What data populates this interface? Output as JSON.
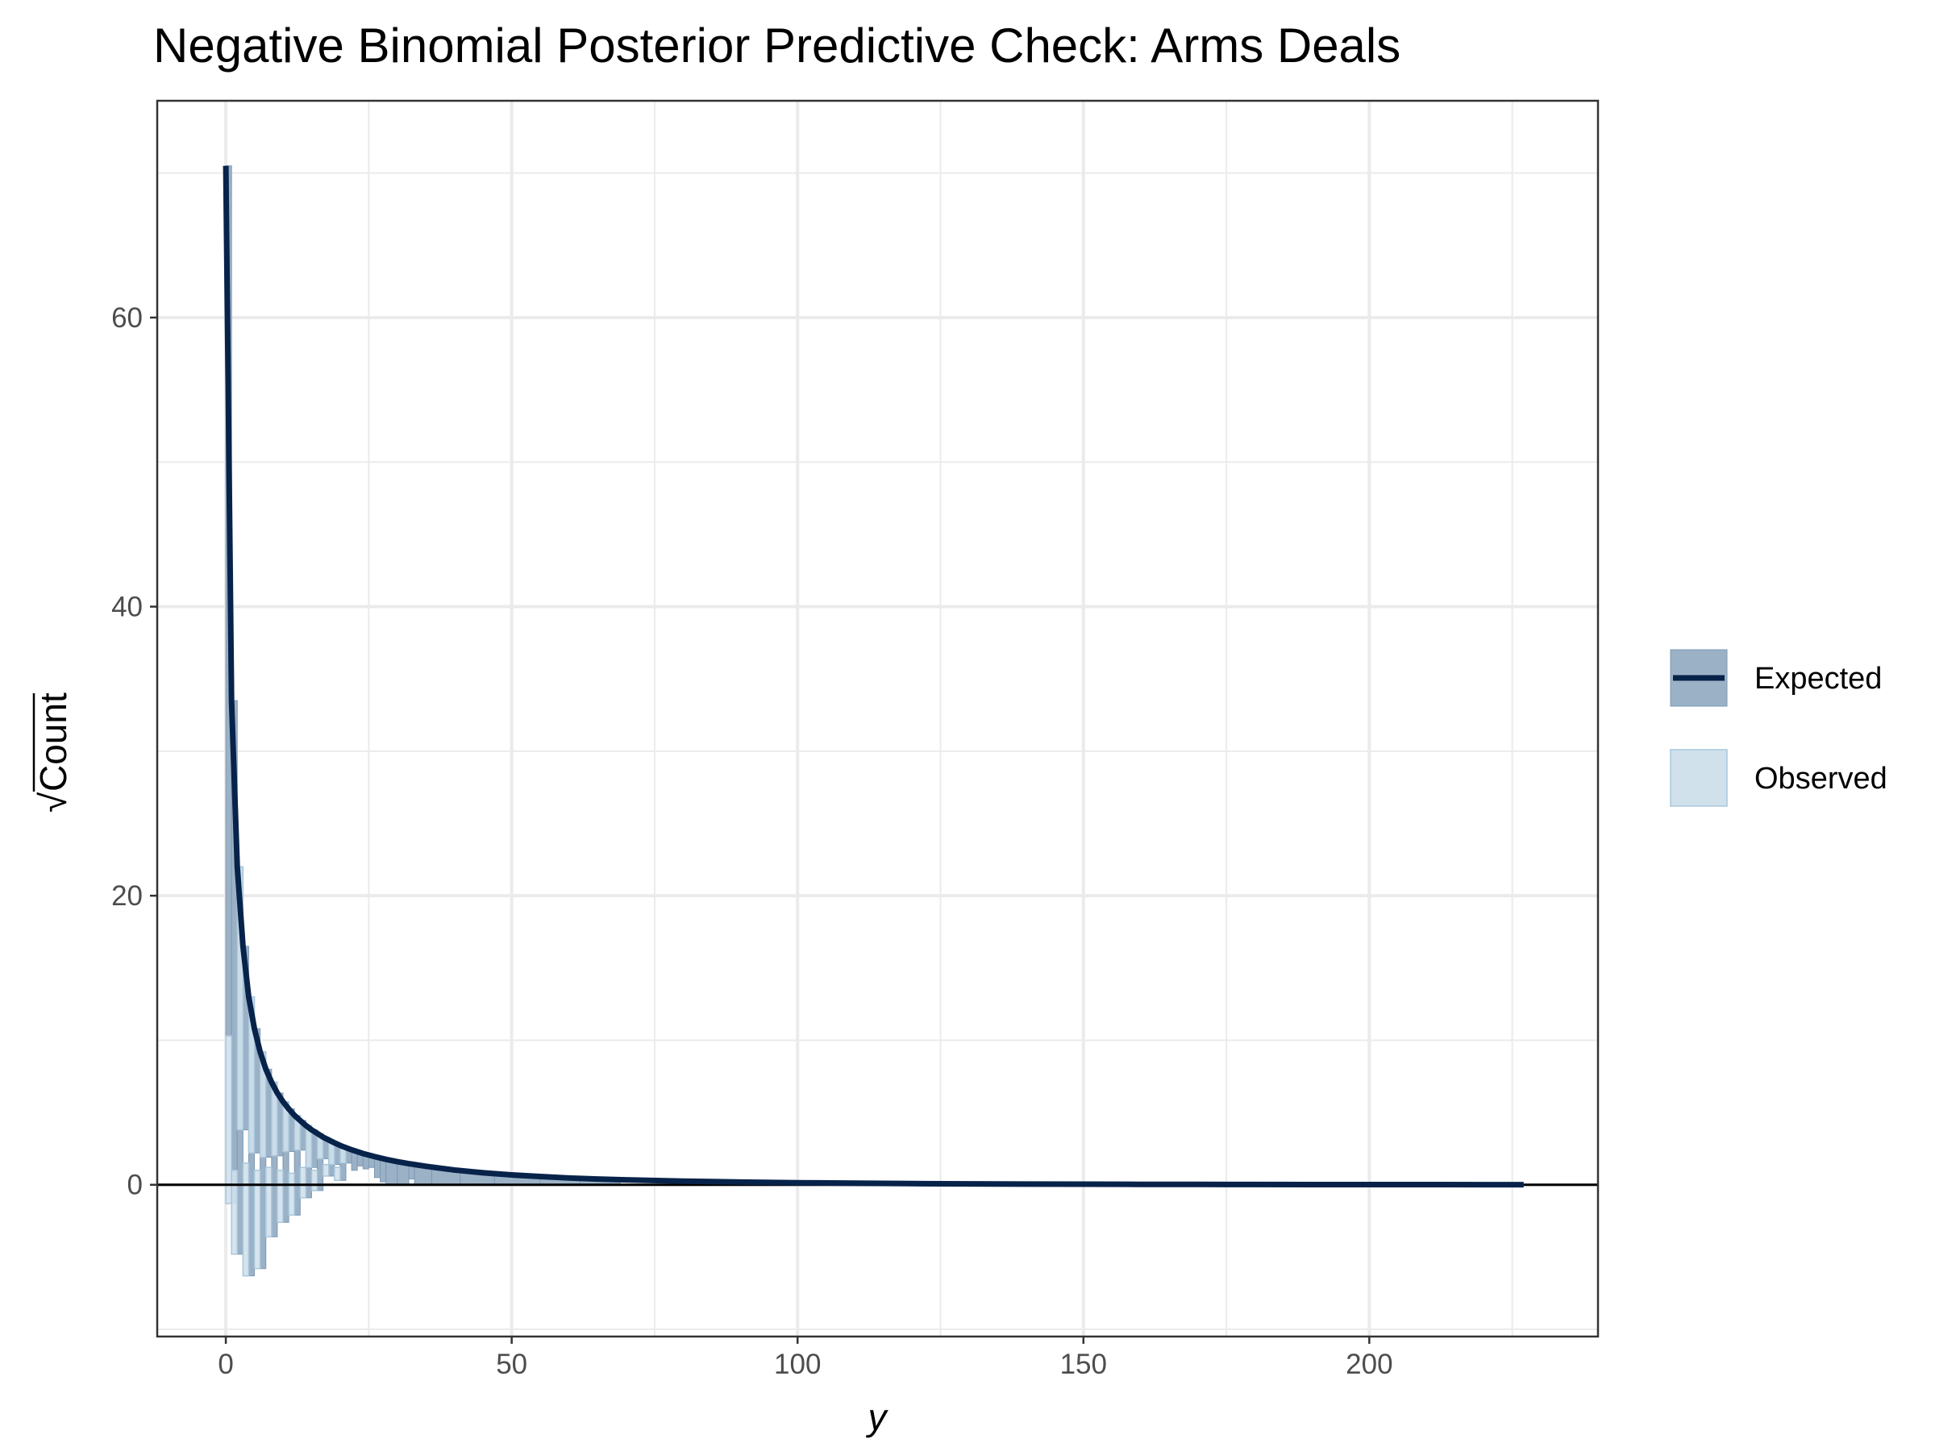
{
  "chart_data": {
    "type": "rootogram",
    "title": "Negative Binomial Posterior Predictive Check: Arms Deals",
    "xlabel": "y",
    "ylabel": "Count",
    "xlim": [
      -12,
      240
    ],
    "ylim": [
      -10.5,
      75
    ],
    "x_ticks": [
      0,
      50,
      100,
      150,
      200
    ],
    "y_ticks": [
      0,
      20,
      40,
      60
    ],
    "grid": true,
    "legend_position": "right",
    "colors": {
      "expected_line": "#08234a",
      "expected_band": "#9bb1c6",
      "expected_band_edge": "#7e99b4",
      "observed_fill": "#d0e1ec",
      "observed_edge": "#a8c7dc",
      "grid": "#ebebeb",
      "panel_border": "#333333",
      "zero_line": "#000000"
    },
    "expected": {
      "name": "Expected",
      "x": [
        0,
        1,
        2,
        3,
        4,
        5,
        6,
        7,
        8,
        9,
        10,
        11,
        12,
        13,
        14,
        15,
        16,
        17,
        18,
        19,
        20,
        22,
        24,
        26,
        28,
        30,
        32,
        35,
        40,
        45,
        50,
        55,
        60,
        65,
        70,
        80,
        90,
        100,
        110,
        120,
        130,
        140,
        150,
        160,
        170,
        180,
        190,
        200,
        210,
        220,
        227
      ],
      "values": [
        70.5,
        33.5,
        22.0,
        16.5,
        13.0,
        10.8,
        9.2,
        8.0,
        7.1,
        6.35,
        5.75,
        5.25,
        4.8,
        4.45,
        4.1,
        3.8,
        3.55,
        3.3,
        3.1,
        2.9,
        2.72,
        2.42,
        2.16,
        1.95,
        1.76,
        1.6,
        1.46,
        1.28,
        1.02,
        0.83,
        0.68,
        0.57,
        0.47,
        0.4,
        0.34,
        0.25,
        0.19,
        0.14,
        0.11,
        0.08,
        0.065,
        0.05,
        0.04,
        0.03,
        0.025,
        0.02,
        0.015,
        0.012,
        0.01,
        0.008,
        0.005
      ],
      "band": [
        {
          "x0": 0,
          "x1": 1,
          "lower": 10.3,
          "upper": 70.5
        },
        {
          "x0": 1,
          "x1": 2,
          "lower": -1.3,
          "upper": 33.5
        },
        {
          "x0": 2,
          "x1": 3,
          "lower": -4.8,
          "upper": 22.0
        },
        {
          "x0": 3,
          "x1": 4,
          "lower": 3.8,
          "upper": 16.5
        },
        {
          "x0": 4,
          "x1": 5,
          "lower": -6.3,
          "upper": 13.0
        },
        {
          "x0": 5,
          "x1": 6,
          "lower": 2.2,
          "upper": 10.8
        },
        {
          "x0": 6,
          "x1": 7,
          "lower": -5.8,
          "upper": 9.2
        },
        {
          "x0": 7,
          "x1": 8,
          "lower": 1.9,
          "upper": 8.0
        },
        {
          "x0": 8,
          "x1": 9,
          "lower": -3.6,
          "upper": 7.1
        },
        {
          "x0": 9,
          "x1": 10,
          "lower": 2.0,
          "upper": 6.35
        },
        {
          "x0": 10,
          "x1": 11,
          "lower": -2.6,
          "upper": 5.75
        },
        {
          "x0": 11,
          "x1": 12,
          "lower": 2.3,
          "upper": 5.25
        },
        {
          "x0": 12,
          "x1": 13,
          "lower": -2.1,
          "upper": 4.8
        },
        {
          "x0": 13,
          "x1": 14,
          "lower": 2.4,
          "upper": 4.45
        },
        {
          "x0": 14,
          "x1": 15,
          "lower": -0.9,
          "upper": 4.1
        },
        {
          "x0": 15,
          "x1": 16,
          "lower": 1.2,
          "upper": 3.8
        },
        {
          "x0": 16,
          "x1": 17,
          "lower": -0.4,
          "upper": 3.55
        },
        {
          "x0": 17,
          "x1": 18,
          "lower": 1.8,
          "upper": 3.3
        },
        {
          "x0": 18,
          "x1": 19,
          "lower": 0.6,
          "upper": 3.1
        },
        {
          "x0": 19,
          "x1": 20,
          "lower": 1.4,
          "upper": 2.9
        },
        {
          "x0": 20,
          "x1": 21,
          "lower": 0.3,
          "upper": 2.72
        },
        {
          "x0": 21,
          "x1": 22,
          "lower": 1.5,
          "upper": 2.55
        },
        {
          "x0": 22,
          "x1": 23,
          "lower": 1.0,
          "upper": 2.42
        },
        {
          "x0": 23,
          "x1": 24,
          "lower": 1.3,
          "upper": 2.28
        },
        {
          "x0": 24,
          "x1": 25,
          "lower": 1.1,
          "upper": 2.16
        },
        {
          "x0": 25,
          "x1": 26,
          "lower": 1.2,
          "upper": 2.05
        },
        {
          "x0": 26,
          "x1": 27,
          "lower": 0.5,
          "upper": 1.95
        },
        {
          "x0": 27,
          "x1": 28,
          "lower": 0.2,
          "upper": 1.85
        },
        {
          "x0": 28,
          "x1": 30,
          "lower": 0.0,
          "upper": 1.76
        },
        {
          "x0": 30,
          "x1": 32,
          "lower": 0.0,
          "upper": 1.6
        },
        {
          "x0": 32,
          "x1": 33,
          "lower": 0.4,
          "upper": 1.46
        },
        {
          "x0": 33,
          "x1": 36,
          "lower": 0.0,
          "upper": 1.35
        },
        {
          "x0": 36,
          "x1": 41,
          "lower": 0.0,
          "upper": 1.15
        },
        {
          "x0": 41,
          "x1": 47,
          "lower": 0.0,
          "upper": 0.92
        },
        {
          "x0": 47,
          "x1": 55,
          "lower": 0.0,
          "upper": 0.72
        },
        {
          "x0": 55,
          "x1": 62,
          "lower": 0.0,
          "upper": 0.55
        },
        {
          "x0": 62,
          "x1": 69,
          "lower": 0.0,
          "upper": 0.42
        }
      ]
    },
    "observed": {
      "name": "Observed",
      "bars": [
        {
          "x": 0,
          "bottom": -1.3,
          "top": 10.3
        },
        {
          "x": 1,
          "bottom": -4.8,
          "top": 1.0
        },
        {
          "x": 2,
          "bottom": 3.8,
          "top": 22.0
        },
        {
          "x": 3,
          "bottom": -6.3,
          "top": 1.5
        },
        {
          "x": 4,
          "bottom": 2.2,
          "top": 13.0
        },
        {
          "x": 5,
          "bottom": -5.8,
          "top": 1.0
        },
        {
          "x": 6,
          "bottom": 1.9,
          "top": 9.2
        },
        {
          "x": 7,
          "bottom": -3.6,
          "top": 1.2
        },
        {
          "x": 8,
          "bottom": 2.0,
          "top": 7.1
        },
        {
          "x": 9,
          "bottom": -2.6,
          "top": 1.0
        },
        {
          "x": 10,
          "bottom": 2.3,
          "top": 5.75
        },
        {
          "x": 11,
          "bottom": -2.1,
          "top": 0.8
        },
        {
          "x": 12,
          "bottom": 2.4,
          "top": 4.8
        },
        {
          "x": 13,
          "bottom": -0.9,
          "top": 1.2
        },
        {
          "x": 14,
          "bottom": 1.2,
          "top": 4.1
        },
        {
          "x": 15,
          "bottom": -0.4,
          "top": 1.0
        },
        {
          "x": 16,
          "bottom": 1.8,
          "top": 3.55
        },
        {
          "x": 17,
          "bottom": 0.6,
          "top": 1.4
        },
        {
          "x": 18,
          "bottom": 1.4,
          "top": 3.1
        },
        {
          "x": 19,
          "bottom": 0.3,
          "top": 1.2
        },
        {
          "x": 20,
          "bottom": 1.5,
          "top": 2.72
        }
      ]
    }
  }
}
